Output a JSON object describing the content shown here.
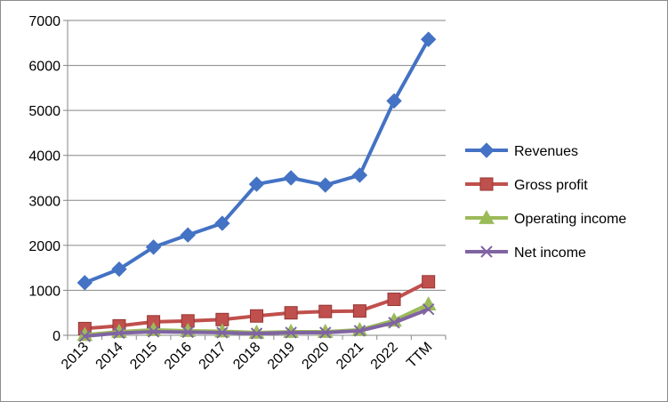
{
  "chart_data": {
    "type": "line",
    "title": "",
    "xlabel": "",
    "ylabel": "",
    "categories": [
      "2013",
      "2014",
      "2015",
      "2016",
      "2017",
      "2018",
      "2019",
      "2020",
      "2021",
      "2022",
      "TTM"
    ],
    "ylim": [
      0,
      7000
    ],
    "yticks": [
      0,
      1000,
      2000,
      3000,
      4000,
      5000,
      6000,
      7000
    ],
    "grid": true,
    "legend_position": "right",
    "series": [
      {
        "name": "Revenues",
        "color": "#4472C4",
        "marker": "diamond",
        "values": [
          1170,
          1470,
          1960,
          2230,
          2490,
          3360,
          3500,
          3340,
          3560,
          5210,
          6580
        ]
      },
      {
        "name": "Gross profit",
        "color": "#C0504D",
        "marker": "square",
        "values": [
          150,
          210,
          300,
          320,
          350,
          430,
          500,
          530,
          540,
          800,
          1190
        ]
      },
      {
        "name": "Operating income",
        "color": "#9BBB59",
        "marker": "triangle",
        "values": [
          10,
          80,
          120,
          100,
          90,
          60,
          80,
          80,
          120,
          330,
          690
        ]
      },
      {
        "name": "Net income",
        "color": "#8064A2",
        "marker": "x",
        "values": [
          -20,
          50,
          80,
          70,
          60,
          40,
          60,
          60,
          100,
          280,
          580
        ]
      }
    ]
  }
}
